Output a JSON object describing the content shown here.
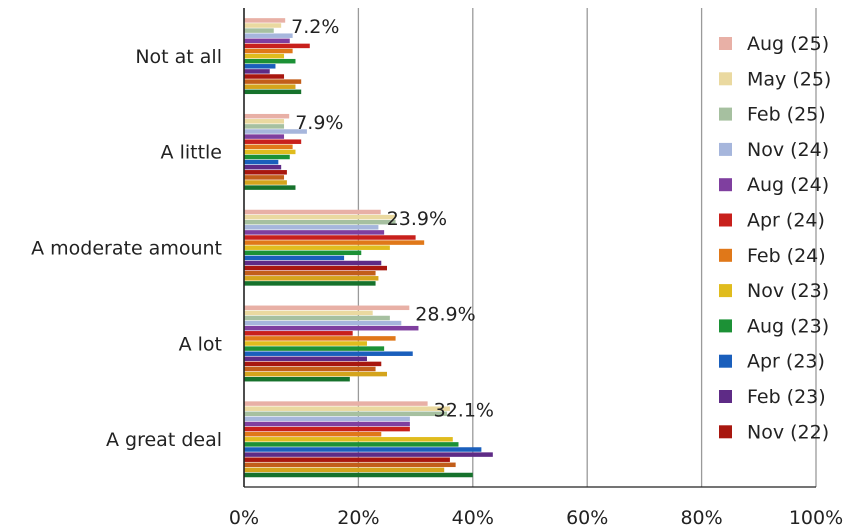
{
  "chart_data": {
    "type": "bar",
    "orientation": "horizontal",
    "categories": [
      "Not at all",
      "A little",
      "A moderate amount",
      "A lot",
      "A great deal"
    ],
    "x_ticks": [
      "0%",
      "20%",
      "40%",
      "60%",
      "80%",
      "100%"
    ],
    "xlim": [
      0,
      100
    ],
    "grid": true,
    "legend_position": "right",
    "data_labels": [
      "7.2%",
      "7.9%",
      "23.9%",
      "28.9%",
      "32.1%"
    ],
    "series": [
      {
        "name": "Aug (25)",
        "color": "#e8b0a6",
        "values": [
          7.2,
          7.9,
          23.9,
          28.9,
          32.1
        ]
      },
      {
        "name": "May (25)",
        "color": "#ead9a0",
        "values": [
          6.5,
          7.0,
          26.5,
          22.5,
          36.0
        ]
      },
      {
        "name": "Feb (25)",
        "color": "#a6c0a0",
        "values": [
          5.2,
          7.0,
          26.5,
          25.5,
          35.5
        ]
      },
      {
        "name": "Nov (24)",
        "color": "#a6b6dc",
        "values": [
          8.5,
          11.0,
          23.5,
          27.5,
          29.0
        ]
      },
      {
        "name": "Aug (24)",
        "color": "#7f3f9f",
        "values": [
          8.0,
          7.0,
          24.5,
          30.5,
          29.0
        ]
      },
      {
        "name": "Apr (24)",
        "color": "#c8201c",
        "values": [
          11.5,
          10.0,
          30.0,
          19.0,
          29.0
        ]
      },
      {
        "name": "Feb (24)",
        "color": "#e07819",
        "values": [
          8.5,
          8.5,
          31.5,
          26.5,
          24.0
        ]
      },
      {
        "name": "Nov (23)",
        "color": "#e0bc1e",
        "values": [
          7.0,
          9.0,
          25.5,
          21.5,
          36.5
        ]
      },
      {
        "name": "Aug (23)",
        "color": "#1c9136",
        "values": [
          9.0,
          8.0,
          20.5,
          24.5,
          37.5
        ]
      },
      {
        "name": "Apr (23)",
        "color": "#1a5fbc",
        "values": [
          5.5,
          6.0,
          17.5,
          29.5,
          41.5
        ]
      },
      {
        "name": "Feb (23)",
        "color": "#5e2b86",
        "values": [
          4.5,
          6.5,
          24.0,
          21.5,
          43.5
        ]
      },
      {
        "name": "Nov (22)",
        "color": "#a8170f",
        "values": [
          7.0,
          7.5,
          25.0,
          24.0,
          36.0
        ]
      },
      {
        "name": "",
        "color": "#c25e1a",
        "values": [
          10.0,
          7.0,
          23.0,
          23.0,
          37.0
        ]
      },
      {
        "name": "",
        "color": "#d4a41c",
        "values": [
          9.0,
          7.5,
          23.5,
          25.0,
          35.0
        ]
      },
      {
        "name": "",
        "color": "#16722c",
        "values": [
          10.0,
          9.0,
          23.0,
          18.5,
          40.0
        ]
      }
    ]
  }
}
